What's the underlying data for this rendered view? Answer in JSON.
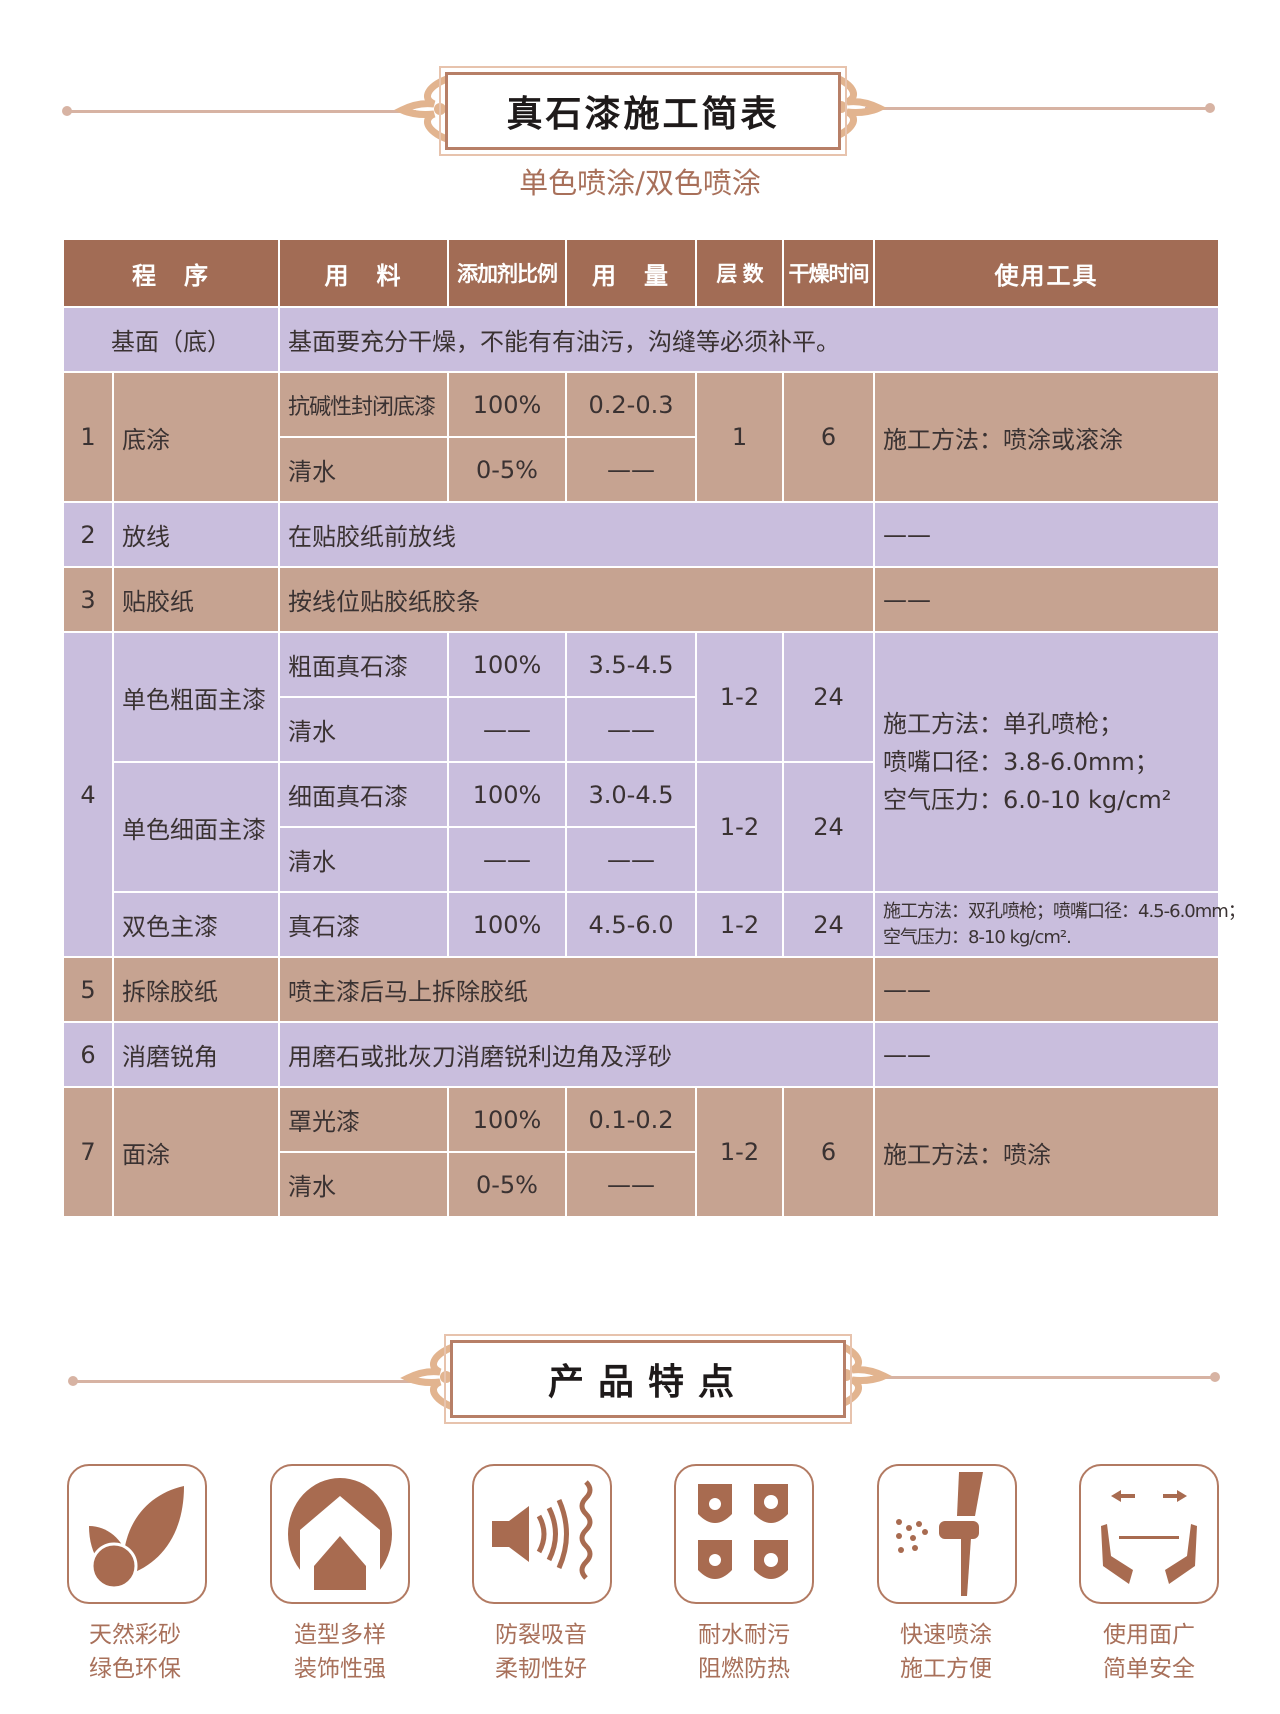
{
  "title": "真石漆施工简表",
  "subtitle": "单色喷涂/双色喷涂",
  "table": {
    "headers": [
      "程　序",
      "用　料",
      "添加剂比例",
      "用　量",
      "层 数",
      "干燥时间",
      "使用工具"
    ],
    "base": {
      "label": "基面（底）",
      "text": "基面要充分干燥，不能有有油污，沟缝等必须补平。"
    },
    "row1": {
      "num": "1",
      "step": "底涂",
      "materials": [
        "抗碱性封闭底漆",
        "清水"
      ],
      "ratios": [
        "100%",
        "0-5%"
      ],
      "amounts": [
        "0.2-0.3",
        "——"
      ],
      "layers": "1",
      "dry": "6",
      "tools": "施工方法：喷涂或滚涂"
    },
    "row2": {
      "num": "2",
      "step": "放线",
      "text": "在贴胶纸前放线",
      "tools": "——"
    },
    "row3": {
      "num": "3",
      "step": "贴胶纸",
      "text": "按线位贴胶纸胶条",
      "tools": "——"
    },
    "row4": {
      "num": "4",
      "groups": [
        {
          "step": "单色粗面主漆",
          "materials": [
            "粗面真石漆",
            "清水"
          ],
          "ratios": [
            "100%",
            "——"
          ],
          "amounts": [
            "3.5-4.5",
            "——"
          ],
          "layers": "1-2",
          "dry": "24"
        },
        {
          "step": "单色细面主漆",
          "materials": [
            "细面真石漆",
            "清水"
          ],
          "ratios": [
            "100%",
            "——"
          ],
          "amounts": [
            "3.0-4.5",
            "——"
          ],
          "layers": "1-2",
          "dry": "24"
        },
        {
          "step": "双色主漆",
          "materials": [
            "真石漆"
          ],
          "ratios": [
            "100%"
          ],
          "amounts": [
            "4.5-6.0"
          ],
          "layers": "1-2",
          "dry": "24"
        }
      ],
      "tools_single": [
        "施工方法：单孔喷枪；",
        "喷嘴口径：3.8-6.0mm；",
        "空气压力：6.0-10 kg/cm²"
      ],
      "tools_double": [
        "施工方法：双孔喷枪；喷嘴口径：4.5-6.0mm；",
        "空气压力：8-10 kg/cm²."
      ]
    },
    "row5": {
      "num": "5",
      "step": "拆除胶纸",
      "text": "喷主漆后马上拆除胶纸",
      "tools": "——"
    },
    "row6": {
      "num": "6",
      "step": "消磨锐角",
      "text": "用磨石或批灰刀消磨锐利边角及浮砂",
      "tools": "——"
    },
    "row7": {
      "num": "7",
      "step": "面涂",
      "materials": [
        "罩光漆",
        "清水"
      ],
      "ratios": [
        "100%",
        "0-5%"
      ],
      "amounts": [
        "0.1-0.2",
        "——"
      ],
      "layers": "1-2",
      "dry": "6",
      "tools": "施工方法：喷涂"
    }
  },
  "features_title": "产品特点",
  "features": [
    {
      "icon": "leaf-globe-icon",
      "lines": [
        "天然彩砂",
        "绿色环保"
      ]
    },
    {
      "icon": "arch-shape-icon",
      "lines": [
        "造型多样",
        "装饰性强"
      ]
    },
    {
      "icon": "sound-wave-icon",
      "lines": [
        "防裂吸音",
        "柔韧性好"
      ]
    },
    {
      "icon": "shields-icon",
      "lines": [
        "耐水耐污",
        "阻燃防热"
      ]
    },
    {
      "icon": "spray-gun-icon",
      "lines": [
        "快速喷涂",
        "施工方便"
      ]
    },
    {
      "icon": "hands-arrows-icon",
      "lines": [
        "使用面广",
        "简单安全"
      ]
    }
  ],
  "colors": {
    "header": "#a26c55",
    "purple_row": "#c9bedd",
    "tan_row": "#c6a391",
    "accent": "#a8705a"
  }
}
